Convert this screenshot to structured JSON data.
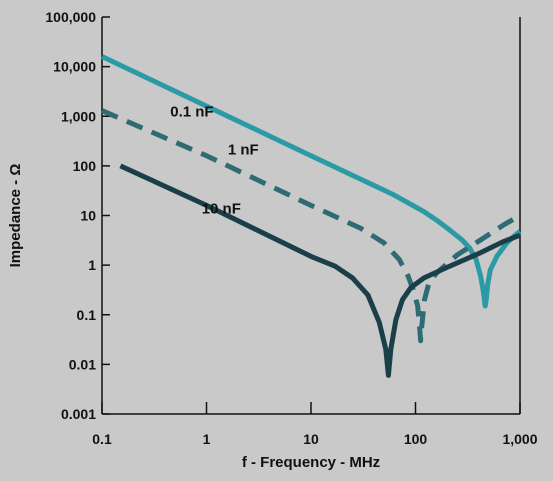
{
  "chart_data": {
    "type": "line",
    "xlabel": "f - Frequency - MHz",
    "ylabel": "Impedance - Ω",
    "x_scale": "log",
    "y_scale": "log",
    "xlim": [
      0.1,
      1000
    ],
    "ylim": [
      0.001,
      100000
    ],
    "grid": false,
    "x_ticks": [
      {
        "value": 0.1,
        "label": "0.1"
      },
      {
        "value": 1,
        "label": "1"
      },
      {
        "value": 10,
        "label": "10"
      },
      {
        "value": 100,
        "label": "100"
      },
      {
        "value": 1000,
        "label": "1,000"
      }
    ],
    "y_ticks": [
      {
        "value": 0.001,
        "label": "0.001"
      },
      {
        "value": 0.01,
        "label": "0.01"
      },
      {
        "value": 0.1,
        "label": "0.1"
      },
      {
        "value": 1,
        "label": "1"
      },
      {
        "value": 10,
        "label": "10"
      },
      {
        "value": 100,
        "label": "100"
      },
      {
        "value": 1000,
        "label": "1,000"
      },
      {
        "value": 10000,
        "label": "10,000"
      },
      {
        "value": 100000,
        "label": "100,000"
      }
    ],
    "series": [
      {
        "name": "0.1 nF",
        "color": "#2a9aa4",
        "dashed": false,
        "label_at": [
          0.45,
          1000
        ],
        "points": [
          [
            0.1,
            16000
          ],
          [
            1,
            1600
          ],
          [
            10,
            160
          ],
          [
            60,
            27
          ],
          [
            120,
            12
          ],
          [
            160,
            8
          ],
          [
            220,
            4.8
          ],
          [
            280,
            3.2
          ],
          [
            330,
            2.2
          ],
          [
            380,
            1.3
          ],
          [
            420,
            0.6
          ],
          [
            445,
            0.3
          ],
          [
            460,
            0.17
          ],
          [
            465,
            0.15
          ],
          [
            475,
            0.2
          ],
          [
            490,
            0.4
          ],
          [
            520,
            0.8
          ],
          [
            600,
            1.5
          ],
          [
            750,
            2.8
          ],
          [
            900,
            4
          ],
          [
            1000,
            4.8
          ]
        ]
      },
      {
        "name": "1 nF",
        "color": "#2f6b72",
        "dashed": true,
        "label_at": [
          1.6,
          170
        ],
        "points": [
          [
            0.1,
            1300
          ],
          [
            1,
            160
          ],
          [
            10,
            16
          ],
          [
            30,
            5.5
          ],
          [
            50,
            2.8
          ],
          [
            70,
            1.3
          ],
          [
            85,
            0.6
          ],
          [
            95,
            0.32
          ],
          [
            105,
            0.15
          ],
          [
            110,
            0.05
          ],
          [
            112,
            0.03
          ],
          [
            115,
            0.06
          ],
          [
            122,
            0.2
          ],
          [
            135,
            0.45
          ],
          [
            160,
            0.7
          ],
          [
            250,
            1.6
          ],
          [
            400,
            3
          ],
          [
            700,
            6.5
          ],
          [
            1000,
            10
          ]
        ]
      },
      {
        "name": "10 nF",
        "color": "#1a3f48",
        "dashed": false,
        "label_at": [
          0.9,
          11
        ],
        "points": [
          [
            0.15,
            100
          ],
          [
            1,
            16
          ],
          [
            10,
            1.5
          ],
          [
            17,
            0.95
          ],
          [
            25,
            0.55
          ],
          [
            35,
            0.25
          ],
          [
            45,
            0.07
          ],
          [
            52,
            0.02
          ],
          [
            55,
            0.006
          ],
          [
            58,
            0.02
          ],
          [
            65,
            0.08
          ],
          [
            75,
            0.2
          ],
          [
            90,
            0.35
          ],
          [
            120,
            0.55
          ],
          [
            200,
            0.9
          ],
          [
            400,
            1.7
          ],
          [
            700,
            3
          ],
          [
            1000,
            4
          ]
        ]
      }
    ]
  }
}
